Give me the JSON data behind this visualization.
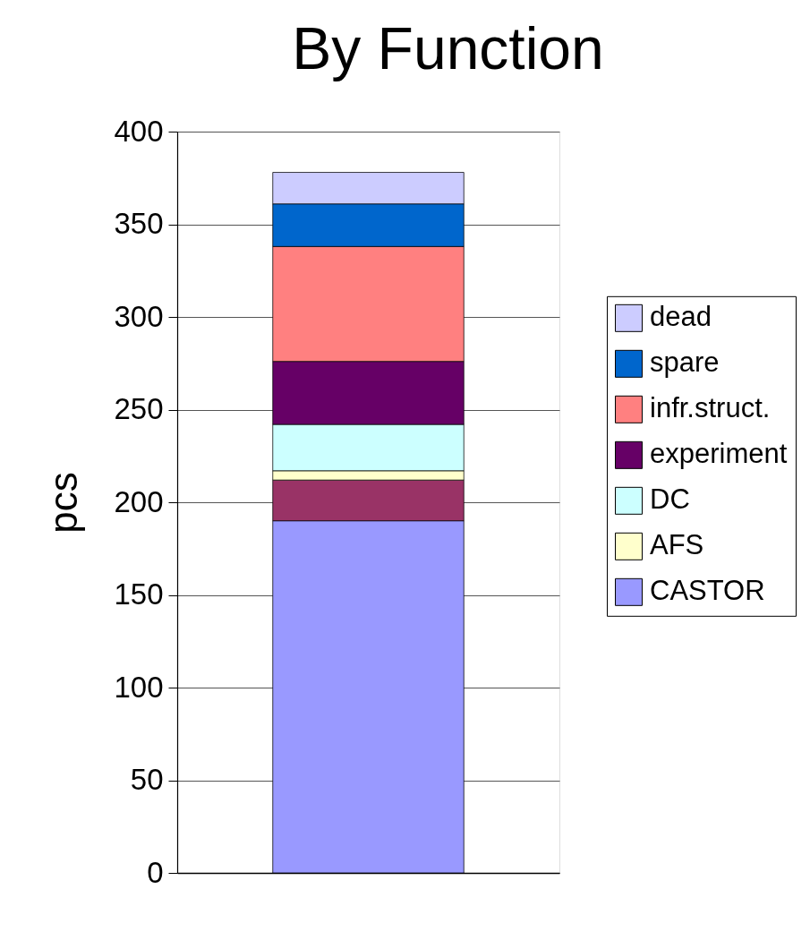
{
  "chart_data": {
    "type": "bar",
    "title": "By Function",
    "ylabel": "pcs",
    "categories": [
      null
    ],
    "stacked": true,
    "ylim": [
      0,
      400
    ],
    "yticks": [
      0,
      50,
      100,
      150,
      200,
      250,
      300,
      350,
      400
    ],
    "grid": "y",
    "legend": "right",
    "tick_labels": "y",
    "series": [
      {
        "name": "CASTOR",
        "color": "#9999ff",
        "values": [
          190
        ]
      },
      {
        "color": "#993366",
        "values": [
          22
        ]
      },
      {
        "name": "AFS",
        "color": "#ffffcc",
        "values": [
          5
        ]
      },
      {
        "name": "DC",
        "color": "#ccffff",
        "values": [
          25
        ]
      },
      {
        "name": "experiment",
        "color": "#660066",
        "values": [
          34
        ]
      },
      {
        "name": "infr.struct.",
        "color": "#ff8080",
        "values": [
          62
        ]
      },
      {
        "name": "spare",
        "color": "#0066cc",
        "values": [
          23
        ]
      },
      {
        "name": "dead",
        "color": "#ccccff",
        "values": [
          17
        ]
      }
    ]
  }
}
